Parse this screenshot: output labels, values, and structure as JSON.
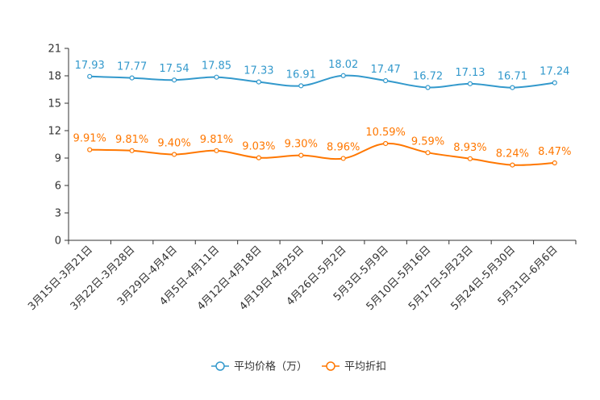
{
  "chart_data": {
    "type": "line",
    "categories": [
      "3月15日-3月21日",
      "3月22日-3月28日",
      "3月29日-4月4日",
      "4月5日-4月11日",
      "4月12日-4月18日",
      "4月19日-4月25日",
      "4月26日-5月2日",
      "5月3日-5月9日",
      "5月10日-5月16日",
      "5月17日-5月23日",
      "5月24日-5月30日",
      "5月31日-6月6日"
    ],
    "series": [
      {
        "name": "平均价格（万）",
        "color": "#3399cc",
        "values": [
          17.93,
          17.77,
          17.54,
          17.85,
          17.33,
          16.91,
          18.02,
          17.47,
          16.72,
          17.13,
          16.71,
          17.24
        ],
        "labels": [
          "17.93",
          "17.77",
          "17.54",
          "17.85",
          "17.33",
          "16.91",
          "18.02",
          "17.47",
          "16.72",
          "17.13",
          "16.71",
          "17.24"
        ]
      },
      {
        "name": "平均折扣",
        "color": "#ff7700",
        "values": [
          9.91,
          9.81,
          9.4,
          9.81,
          9.03,
          9.3,
          8.96,
          10.59,
          9.59,
          8.93,
          8.24,
          8.47
        ],
        "labels": [
          "9.91%",
          "9.81%",
          "9.40%",
          "9.81%",
          "9.03%",
          "9.30%",
          "8.96%",
          "10.59%",
          "9.59%",
          "8.93%",
          "8.24%",
          "8.47%"
        ]
      }
    ],
    "yticks": [
      "0",
      "3",
      "6",
      "9",
      "12",
      "15",
      "18",
      "21"
    ],
    "ytick_values": [
      0,
      3,
      6,
      9,
      12,
      15,
      18,
      21
    ],
    "ylim": [
      0,
      21
    ],
    "title": "",
    "xlabel": "",
    "ylabel": "",
    "legend_position": "bottom-center",
    "grid": false
  }
}
